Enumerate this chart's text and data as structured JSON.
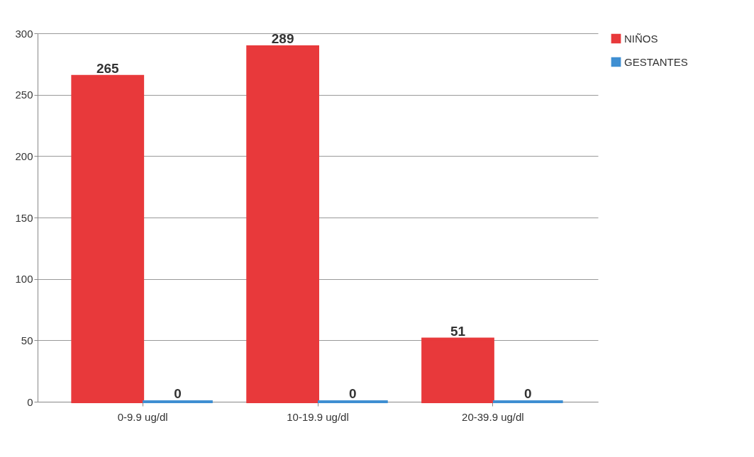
{
  "chart_data": {
    "type": "bar",
    "categories": [
      "0-9.9 ug/dl",
      "10-19.9 ug/dl",
      "20-39.9 ug/dl"
    ],
    "series": [
      {
        "name": "NIÑOS",
        "color": "#e8393b",
        "values": [
          265,
          289,
          51
        ]
      },
      {
        "name": "GESTANTES",
        "color": "#3f8fd2",
        "values": [
          0,
          0,
          0
        ]
      }
    ],
    "ylim": [
      0,
      300
    ],
    "yticks": [
      0,
      50,
      100,
      150,
      200,
      250,
      300
    ],
    "grid": "y",
    "legend": "right",
    "data_labels": true
  }
}
